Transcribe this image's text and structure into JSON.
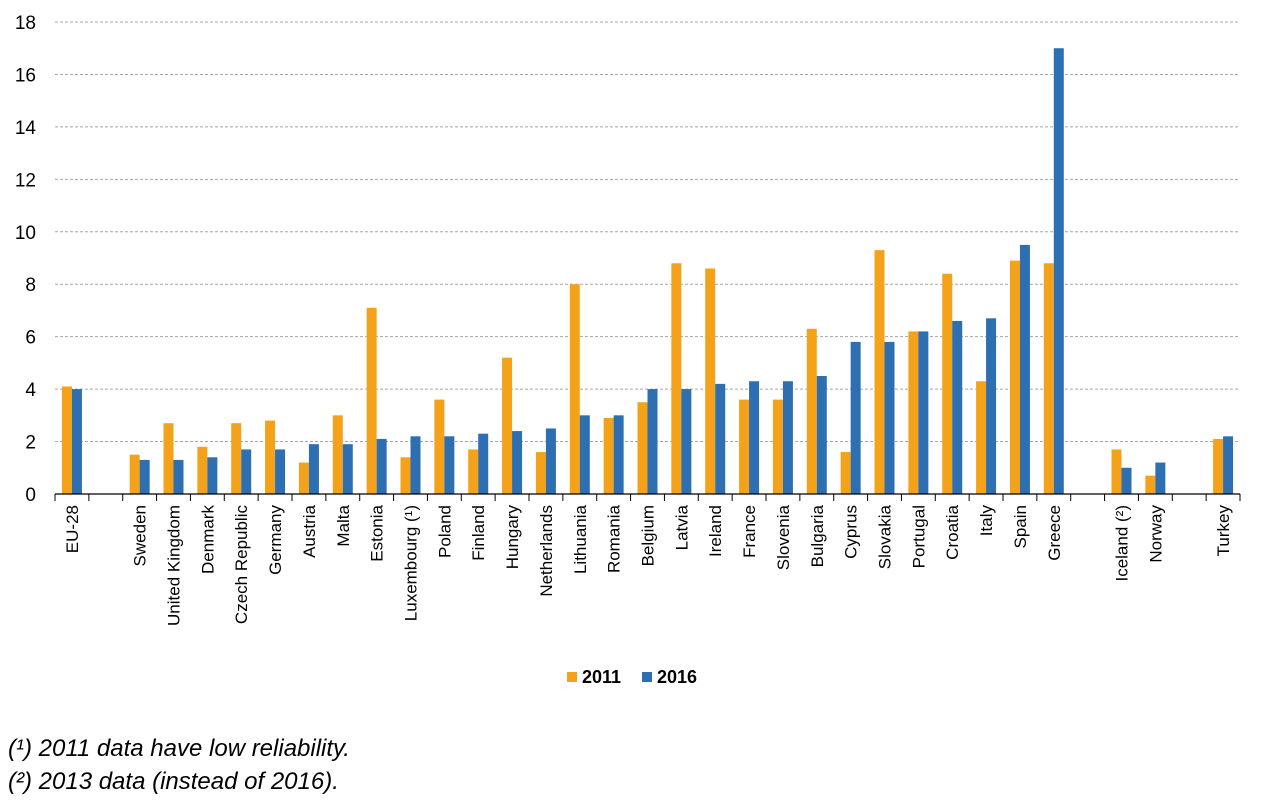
{
  "chart_data": {
    "type": "bar",
    "title": "",
    "xlabel": "",
    "ylabel": "",
    "ylim": [
      0,
      18
    ],
    "yticks": [
      0,
      2,
      4,
      6,
      8,
      10,
      12,
      14,
      16,
      18
    ],
    "grid": true,
    "legend_position": "bottom",
    "categories": [
      "EU-28",
      "",
      "Sweden",
      "United Kingdom",
      "Denmark",
      "Czech Republic",
      "Germany",
      "Austria",
      "Malta",
      "Estonia",
      "Luxembourg (¹)",
      "Poland",
      "Finland",
      "Hungary",
      "Netherlands",
      "Lithuania",
      "Romania",
      "Belgium",
      "Latvia",
      "Ireland",
      "France",
      "Slovenia",
      "Bulgaria",
      "Cyprus",
      "Slovakia",
      "Portugal",
      "Croatia",
      "Italy",
      "Spain",
      "Greece",
      "",
      "Iceland (²)",
      "Norway",
      "",
      "Turkey"
    ],
    "series": [
      {
        "name": "2011",
        "color": "#f5a21b",
        "values": [
          4.1,
          null,
          1.5,
          2.7,
          1.8,
          2.7,
          2.8,
          1.2,
          3.0,
          7.1,
          1.4,
          3.6,
          1.7,
          5.2,
          1.6,
          8.0,
          2.9,
          3.5,
          8.8,
          8.6,
          3.6,
          3.6,
          6.3,
          1.6,
          9.3,
          6.2,
          8.4,
          4.3,
          8.9,
          8.8,
          null,
          1.7,
          0.7,
          null,
          2.1
        ]
      },
      {
        "name": "2016",
        "color": "#2e6fb2",
        "values": [
          4.0,
          null,
          1.3,
          1.3,
          1.4,
          1.7,
          1.7,
          1.9,
          1.9,
          2.1,
          2.2,
          2.2,
          2.3,
          2.4,
          2.5,
          3.0,
          3.0,
          4.0,
          4.0,
          4.2,
          4.3,
          4.3,
          4.5,
          5.8,
          5.8,
          6.2,
          6.6,
          6.7,
          9.5,
          17.0,
          null,
          1.0,
          1.2,
          null,
          2.2
        ]
      }
    ]
  },
  "footnotes": {
    "note1": "(¹) 2011 data have low reliability.",
    "note2": "(²) 2013 data (instead of 2016)."
  }
}
